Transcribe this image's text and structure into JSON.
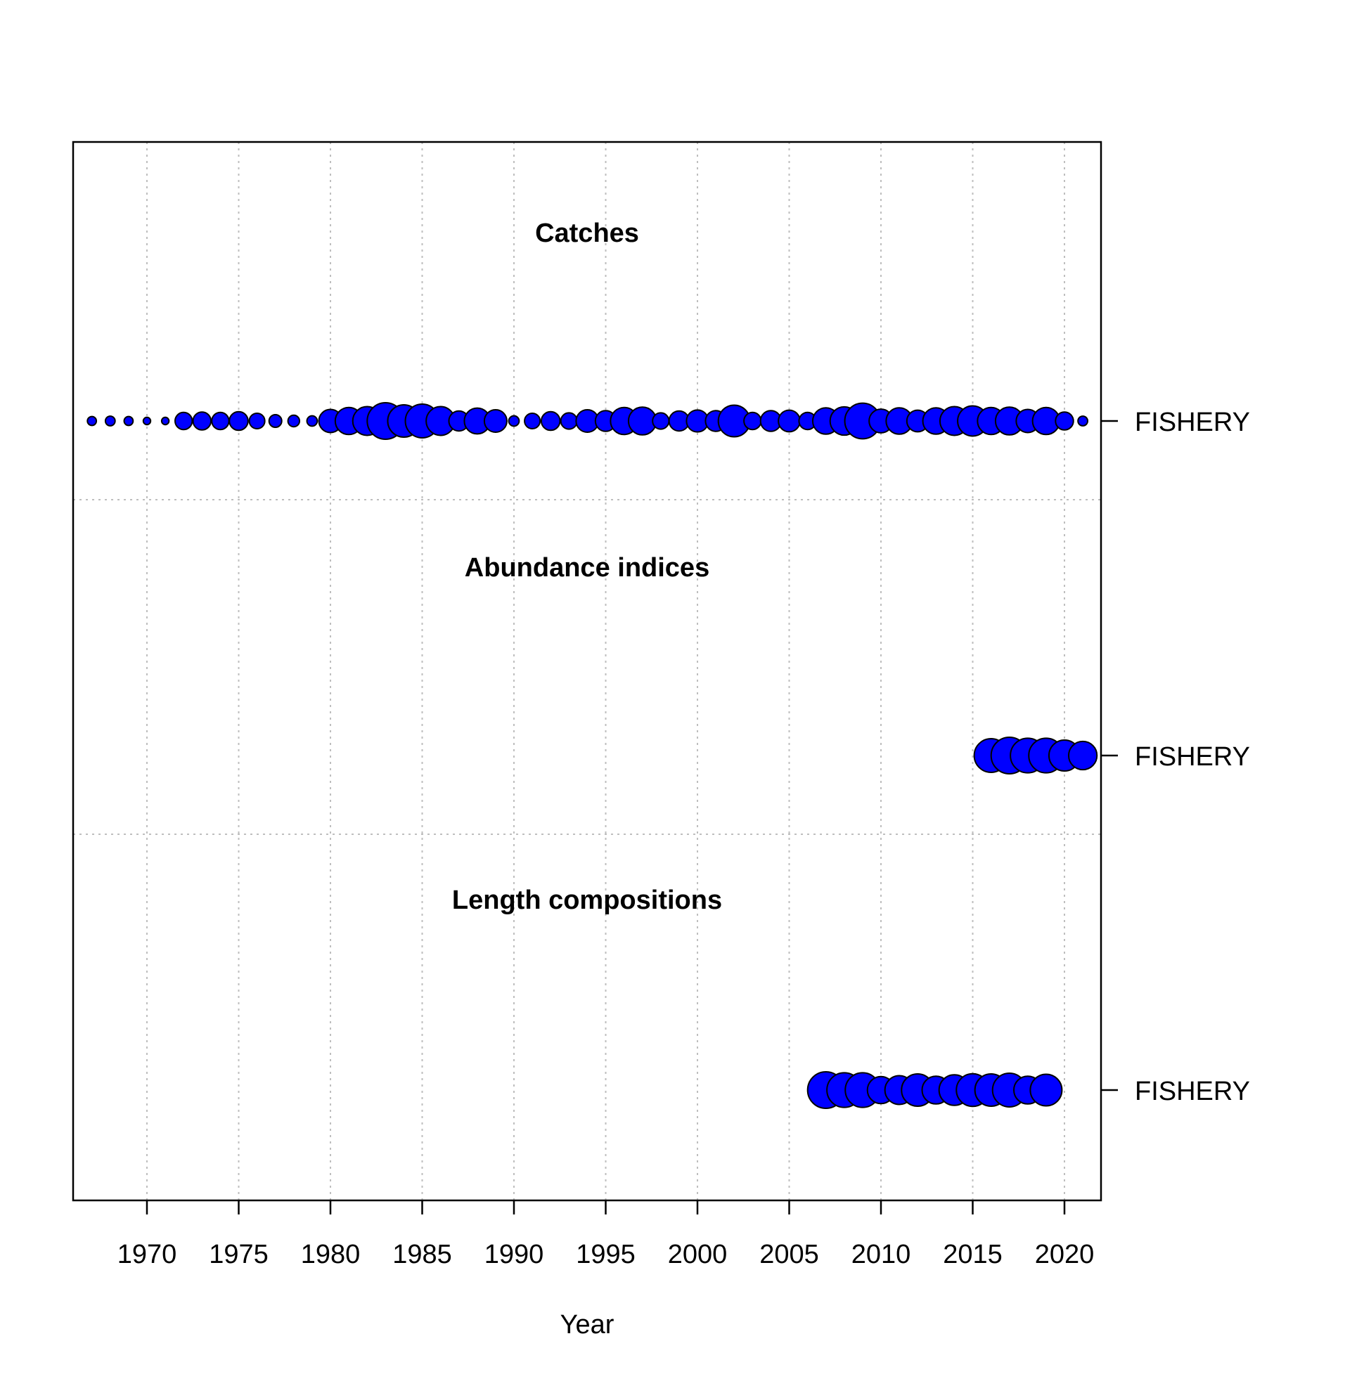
{
  "chart_data": {
    "type": "scatter",
    "subtype": "bubble",
    "xlabel": "Year",
    "x_ticks": [
      1970,
      1975,
      1980,
      1985,
      1990,
      1995,
      2000,
      2005,
      2010,
      2015,
      2020
    ],
    "xlim": [
      1966,
      2022
    ],
    "grid": true,
    "colors": {
      "bubble_fill": "#0000FF",
      "bubble_stroke": "#000000",
      "grid": "#BEBEBE",
      "axis": "#000000"
    },
    "panels": [
      {
        "title": "Catches",
        "fleet": "FISHERY",
        "points": [
          {
            "year": 1967,
            "size": 0.06
          },
          {
            "year": 1968,
            "size": 0.07
          },
          {
            "year": 1969,
            "size": 0.06
          },
          {
            "year": 1970,
            "size": 0.04
          },
          {
            "year": 1971,
            "size": 0.04
          },
          {
            "year": 1972,
            "size": 0.22
          },
          {
            "year": 1973,
            "size": 0.24
          },
          {
            "year": 1974,
            "size": 0.22
          },
          {
            "year": 1975,
            "size": 0.26
          },
          {
            "year": 1976,
            "size": 0.18
          },
          {
            "year": 1977,
            "size": 0.12
          },
          {
            "year": 1978,
            "size": 0.1
          },
          {
            "year": 1979,
            "size": 0.08
          },
          {
            "year": 1980,
            "size": 0.4
          },
          {
            "year": 1981,
            "size": 0.55
          },
          {
            "year": 1982,
            "size": 0.62
          },
          {
            "year": 1983,
            "size": 1.0
          },
          {
            "year": 1984,
            "size": 0.78
          },
          {
            "year": 1985,
            "size": 0.85
          },
          {
            "year": 1986,
            "size": 0.62
          },
          {
            "year": 1987,
            "size": 0.3
          },
          {
            "year": 1988,
            "size": 0.5
          },
          {
            "year": 1989,
            "size": 0.38
          },
          {
            "year": 1990,
            "size": 0.08
          },
          {
            "year": 1991,
            "size": 0.18
          },
          {
            "year": 1992,
            "size": 0.26
          },
          {
            "year": 1993,
            "size": 0.2
          },
          {
            "year": 1994,
            "size": 0.38
          },
          {
            "year": 1995,
            "size": 0.32
          },
          {
            "year": 1996,
            "size": 0.55
          },
          {
            "year": 1997,
            "size": 0.58
          },
          {
            "year": 1998,
            "size": 0.2
          },
          {
            "year": 1999,
            "size": 0.3
          },
          {
            "year": 2000,
            "size": 0.36
          },
          {
            "year": 2001,
            "size": 0.32
          },
          {
            "year": 2002,
            "size": 0.75
          },
          {
            "year": 2003,
            "size": 0.22
          },
          {
            "year": 2004,
            "size": 0.32
          },
          {
            "year": 2005,
            "size": 0.35
          },
          {
            "year": 2006,
            "size": 0.22
          },
          {
            "year": 2007,
            "size": 0.52
          },
          {
            "year": 2008,
            "size": 0.6
          },
          {
            "year": 2009,
            "size": 0.95
          },
          {
            "year": 2010,
            "size": 0.42
          },
          {
            "year": 2011,
            "size": 0.52
          },
          {
            "year": 2012,
            "size": 0.35
          },
          {
            "year": 2013,
            "size": 0.52
          },
          {
            "year": 2014,
            "size": 0.62
          },
          {
            "year": 2015,
            "size": 0.68
          },
          {
            "year": 2016,
            "size": 0.55
          },
          {
            "year": 2017,
            "size": 0.58
          },
          {
            "year": 2018,
            "size": 0.4
          },
          {
            "year": 2019,
            "size": 0.55
          },
          {
            "year": 2020,
            "size": 0.24
          },
          {
            "year": 2021,
            "size": 0.07
          }
        ]
      },
      {
        "title": "Abundance indices",
        "fleet": "FISHERY",
        "points": [
          {
            "year": 2016,
            "size": 0.85
          },
          {
            "year": 2017,
            "size": 1.0
          },
          {
            "year": 2018,
            "size": 0.9
          },
          {
            "year": 2019,
            "size": 0.9
          },
          {
            "year": 2020,
            "size": 0.72
          },
          {
            "year": 2021,
            "size": 0.6
          }
        ]
      },
      {
        "title": "Length compositions",
        "fleet": "FISHERY",
        "points": [
          {
            "year": 2007,
            "size": 1.0
          },
          {
            "year": 2008,
            "size": 0.9
          },
          {
            "year": 2009,
            "size": 0.9
          },
          {
            "year": 2010,
            "size": 0.55
          },
          {
            "year": 2011,
            "size": 0.62
          },
          {
            "year": 2012,
            "size": 0.78
          },
          {
            "year": 2013,
            "size": 0.58
          },
          {
            "year": 2014,
            "size": 0.7
          },
          {
            "year": 2015,
            "size": 0.8
          },
          {
            "year": 2016,
            "size": 0.78
          },
          {
            "year": 2017,
            "size": 0.85
          },
          {
            "year": 2018,
            "size": 0.58
          },
          {
            "year": 2019,
            "size": 0.75
          }
        ]
      }
    ]
  }
}
